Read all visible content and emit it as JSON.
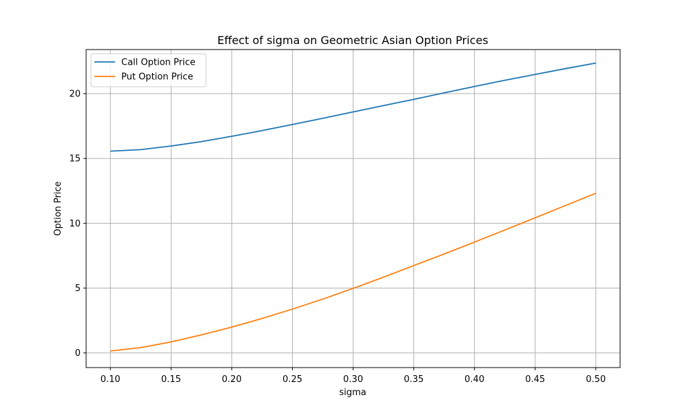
{
  "chart_data": {
    "type": "line",
    "title": "Effect of sigma on Geometric Asian Option Prices",
    "xlabel": "sigma",
    "ylabel": "Option Price",
    "xlim": [
      0.08,
      0.52
    ],
    "ylim": [
      -1.13,
      23.4
    ],
    "grid": true,
    "legend_position": "top-left",
    "x_ticks": [
      0.1,
      0.15,
      0.2,
      0.25,
      0.3,
      0.35,
      0.4,
      0.45,
      0.5
    ],
    "x_tick_labels": [
      "0.10",
      "0.15",
      "0.20",
      "0.25",
      "0.30",
      "0.35",
      "0.40",
      "0.45",
      "0.50"
    ],
    "y_ticks": [
      0,
      5,
      10,
      15,
      20
    ],
    "y_tick_labels": [
      "0",
      "5",
      "10",
      "15",
      "20"
    ],
    "x": [
      0.1,
      0.125,
      0.15,
      0.175,
      0.2,
      0.225,
      0.25,
      0.275,
      0.3,
      0.325,
      0.35,
      0.375,
      0.4,
      0.425,
      0.45,
      0.475,
      0.5
    ],
    "series": [
      {
        "name": "Call Option Price",
        "color": "#1f77b4",
        "values": [
          15.56,
          15.68,
          15.96,
          16.3,
          16.71,
          17.15,
          17.62,
          18.1,
          18.59,
          19.08,
          19.56,
          20.06,
          20.55,
          21.03,
          21.48,
          21.93,
          22.36
        ]
      },
      {
        "name": "Put Option Price",
        "color": "#ff7f0e",
        "values": [
          0.15,
          0.41,
          0.85,
          1.39,
          1.99,
          2.66,
          3.38,
          4.15,
          4.98,
          5.84,
          6.74,
          7.63,
          8.55,
          9.48,
          10.42,
          11.37,
          12.32
        ]
      }
    ]
  }
}
